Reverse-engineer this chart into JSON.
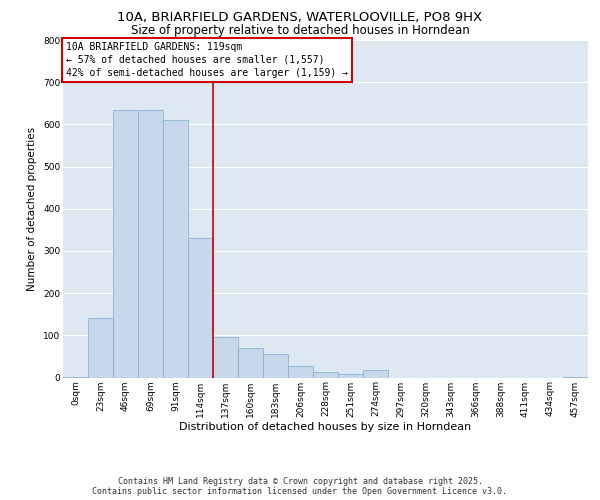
{
  "title_line1": "10A, BRIARFIELD GARDENS, WATERLOOVILLE, PO8 9HX",
  "title_line2": "Size of property relative to detached houses in Horndean",
  "xlabel": "Distribution of detached houses by size in Horndean",
  "ylabel": "Number of detached properties",
  "categories": [
    "0sqm",
    "23sqm",
    "46sqm",
    "69sqm",
    "91sqm",
    "114sqm",
    "137sqm",
    "160sqm",
    "183sqm",
    "206sqm",
    "228sqm",
    "251sqm",
    "274sqm",
    "297sqm",
    "320sqm",
    "343sqm",
    "366sqm",
    "388sqm",
    "411sqm",
    "434sqm",
    "457sqm"
  ],
  "values": [
    2,
    140,
    635,
    635,
    610,
    330,
    95,
    70,
    55,
    28,
    14,
    8,
    17,
    0,
    0,
    0,
    0,
    0,
    0,
    0,
    2
  ],
  "bar_color": "#c8d8ec",
  "bar_edge_color": "#7aadcf",
  "vline_color": "#cc0000",
  "vline_x_index": 5.48,
  "annotation_text": "10A BRIARFIELD GARDENS: 119sqm\n← 57% of detached houses are smaller (1,557)\n42% of semi-detached houses are larger (1,159) →",
  "annotation_box_facecolor": "white",
  "annotation_box_edgecolor": "#cc0000",
  "ylim": [
    0,
    800
  ],
  "yticks": [
    0,
    100,
    200,
    300,
    400,
    500,
    600,
    700,
    800
  ],
  "axes_bg_color": "#dde8f2",
  "footer_text": "Contains HM Land Registry data © Crown copyright and database right 2025.\nContains public sector information licensed under the Open Government Licence v3.0.",
  "title_fontsize": 9.5,
  "subtitle_fontsize": 8.5,
  "xlabel_fontsize": 8,
  "ylabel_fontsize": 7.5,
  "tick_fontsize": 6.5,
  "annotation_fontsize": 7,
  "footer_fontsize": 6
}
